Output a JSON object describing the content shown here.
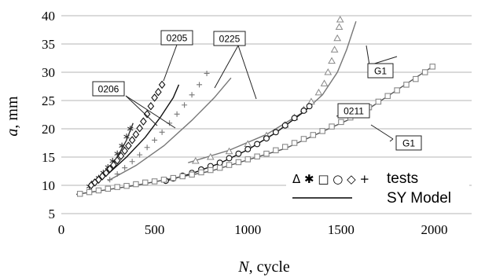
{
  "chart_data": {
    "type": "scatter",
    "xlabel": {
      "var": "N",
      "rest": ", cycle"
    },
    "ylabel": {
      "var": "a",
      "rest": ", mm"
    },
    "xlim": [
      0,
      2200
    ],
    "ylim": [
      5,
      40
    ],
    "xticks": [
      0,
      500,
      1000,
      1500,
      2000
    ],
    "yticks": [
      5,
      10,
      15,
      20,
      25,
      30,
      35,
      40
    ],
    "grid": "horizontal",
    "legend": {
      "placement": "bottom-right",
      "tests_symbols": "Δ ✱ □ ○ ◇ +",
      "tests_label": "tests",
      "model_label": "SY Model"
    },
    "series": [
      {
        "name": "0206",
        "kind": "tests",
        "marker": "asterisk",
        "color": "#333333",
        "points": [
          [
            150,
            9.8
          ],
          [
            175,
            10.5
          ],
          [
            200,
            11.3
          ],
          [
            225,
            12.2
          ],
          [
            250,
            13.2
          ],
          [
            275,
            14.3
          ],
          [
            300,
            15.6
          ],
          [
            325,
            17.0
          ],
          [
            350,
            18.6
          ],
          [
            370,
            20.0
          ]
        ]
      },
      {
        "name": "0206",
        "kind": "model",
        "color": "#333333",
        "points": [
          [
            150,
            9.6
          ],
          [
            200,
            11.0
          ],
          [
            250,
            12.8
          ],
          [
            300,
            15.0
          ],
          [
            350,
            18.0
          ],
          [
            385,
            21.0
          ]
        ]
      },
      {
        "name": "0205",
        "kind": "tests",
        "marker": "diamond",
        "color": "#111111",
        "points": [
          [
            160,
            10.0
          ],
          [
            180,
            10.5
          ],
          [
            200,
            11.0
          ],
          [
            220,
            11.6
          ],
          [
            240,
            12.2
          ],
          [
            260,
            12.9
          ],
          [
            280,
            13.6
          ],
          [
            300,
            14.4
          ],
          [
            320,
            15.2
          ],
          [
            340,
            16.1
          ],
          [
            360,
            17.0
          ],
          [
            380,
            18.0
          ],
          [
            400,
            19.0
          ],
          [
            420,
            20.1
          ],
          [
            440,
            21.3
          ],
          [
            460,
            22.6
          ],
          [
            480,
            24.0
          ],
          [
            500,
            25.5
          ],
          [
            520,
            26.5
          ],
          [
            540,
            27.8
          ]
        ]
      },
      {
        "name": "0205",
        "kind": "model",
        "color": "#111111",
        "points": [
          [
            160,
            9.9
          ],
          [
            250,
            12.0
          ],
          [
            350,
            15.0
          ],
          [
            450,
            18.5
          ],
          [
            530,
            22.0
          ],
          [
            600,
            25.5
          ],
          [
            630,
            27.8
          ]
        ]
      },
      {
        "name": "0225",
        "kind": "tests",
        "marker": "plus",
        "color": "#777777",
        "points": [
          [
            260,
            11.0
          ],
          [
            300,
            12.0
          ],
          [
            340,
            13.1
          ],
          [
            380,
            14.2
          ],
          [
            420,
            15.4
          ],
          [
            460,
            16.7
          ],
          [
            500,
            18.0
          ],
          [
            540,
            19.4
          ],
          [
            580,
            21.0
          ],
          [
            620,
            22.6
          ],
          [
            660,
            24.2
          ],
          [
            700,
            26.0
          ],
          [
            740,
            27.8
          ],
          [
            780,
            29.8
          ]
        ]
      },
      {
        "name": "0225",
        "kind": "model",
        "color": "#777777",
        "points": [
          [
            250,
            10.8
          ],
          [
            400,
            13.5
          ],
          [
            550,
            17.0
          ],
          [
            700,
            21.5
          ],
          [
            820,
            25.5
          ],
          [
            910,
            29.0
          ]
        ]
      },
      {
        "name": "G1",
        "kind": "tests",
        "marker": "triangle",
        "color": "#888888",
        "points": [
          [
            720,
            14.3
          ],
          [
            800,
            15.0
          ],
          [
            900,
            16.0
          ],
          [
            1000,
            17.3
          ],
          [
            1100,
            18.8
          ],
          [
            1200,
            20.7
          ],
          [
            1250,
            22.0
          ],
          [
            1300,
            23.4
          ],
          [
            1340,
            24.8
          ],
          [
            1380,
            26.4
          ],
          [
            1410,
            28.0
          ],
          [
            1430,
            30.0
          ],
          [
            1450,
            32.0
          ],
          [
            1465,
            34.0
          ],
          [
            1480,
            36.0
          ],
          [
            1490,
            38.0
          ],
          [
            1495,
            39.3
          ]
        ]
      },
      {
        "name": "G1",
        "kind": "model",
        "color": "#777777",
        "points": [
          [
            680,
            14.0
          ],
          [
            900,
            16.2
          ],
          [
            1100,
            19.0
          ],
          [
            1300,
            23.0
          ],
          [
            1400,
            26.0
          ],
          [
            1480,
            30.0
          ],
          [
            1530,
            34.0
          ],
          [
            1560,
            37.0
          ],
          [
            1580,
            39.0
          ]
        ]
      },
      {
        "name": "0211",
        "kind": "tests",
        "marker": "circle",
        "color": "#111111",
        "points": [
          [
            560,
            10.8
          ],
          [
            600,
            11.2
          ],
          [
            650,
            11.7
          ],
          [
            700,
            12.2
          ],
          [
            750,
            12.8
          ],
          [
            800,
            13.4
          ],
          [
            850,
            14.0
          ],
          [
            900,
            14.8
          ],
          [
            950,
            15.6
          ],
          [
            1000,
            16.4
          ],
          [
            1050,
            17.3
          ],
          [
            1100,
            18.3
          ],
          [
            1150,
            19.4
          ],
          [
            1200,
            20.6
          ],
          [
            1250,
            21.9
          ],
          [
            1300,
            23.2
          ],
          [
            1330,
            24.0
          ]
        ]
      },
      {
        "name": "0211",
        "kind": "model",
        "color": "#111111",
        "points": [
          [
            540,
            10.6
          ],
          [
            700,
            12.1
          ],
          [
            850,
            13.9
          ],
          [
            1000,
            16.3
          ],
          [
            1150,
            19.3
          ],
          [
            1300,
            23.0
          ],
          [
            1340,
            24.2
          ]
        ]
      },
      {
        "name": "G1",
        "kind": "tests",
        "marker": "square",
        "color": "#888888",
        "points": [
          [
            100,
            8.5
          ],
          [
            150,
            8.8
          ],
          [
            200,
            9.1
          ],
          [
            250,
            9.4
          ],
          [
            300,
            9.7
          ],
          [
            350,
            9.9
          ],
          [
            400,
            10.2
          ],
          [
            450,
            10.5
          ],
          [
            500,
            10.7
          ],
          [
            550,
            11.0
          ],
          [
            600,
            11.3
          ],
          [
            650,
            11.6
          ],
          [
            700,
            11.9
          ],
          [
            750,
            12.3
          ],
          [
            800,
            12.7
          ],
          [
            850,
            13.1
          ],
          [
            900,
            13.6
          ],
          [
            950,
            14.1
          ],
          [
            1000,
            14.6
          ],
          [
            1050,
            15.1
          ],
          [
            1100,
            15.6
          ],
          [
            1150,
            16.2
          ],
          [
            1200,
            16.8
          ],
          [
            1250,
            17.5
          ],
          [
            1300,
            18.2
          ],
          [
            1350,
            18.9
          ],
          [
            1400,
            19.6
          ],
          [
            1450,
            20.4
          ],
          [
            1500,
            21.2
          ],
          [
            1550,
            22.0
          ],
          [
            1600,
            22.8
          ],
          [
            1650,
            23.8
          ],
          [
            1700,
            24.8
          ],
          [
            1750,
            25.8
          ],
          [
            1800,
            26.8
          ],
          [
            1850,
            27.8
          ],
          [
            1900,
            28.8
          ],
          [
            1950,
            30.0
          ],
          [
            1990,
            31.0
          ]
        ]
      },
      {
        "name": "G1",
        "kind": "model",
        "color": "#555555",
        "points": [
          [
            80,
            8.4
          ],
          [
            400,
            10.0
          ],
          [
            800,
            12.5
          ],
          [
            1200,
            16.5
          ],
          [
            1600,
            22.5
          ],
          [
            1990,
            31.0
          ]
        ]
      }
    ],
    "annotations": [
      {
        "text": "0206"
      },
      {
        "text": "0205"
      },
      {
        "text": "0225"
      },
      {
        "text": "0211"
      },
      {
        "text": "G1"
      },
      {
        "text": "G1"
      }
    ]
  }
}
